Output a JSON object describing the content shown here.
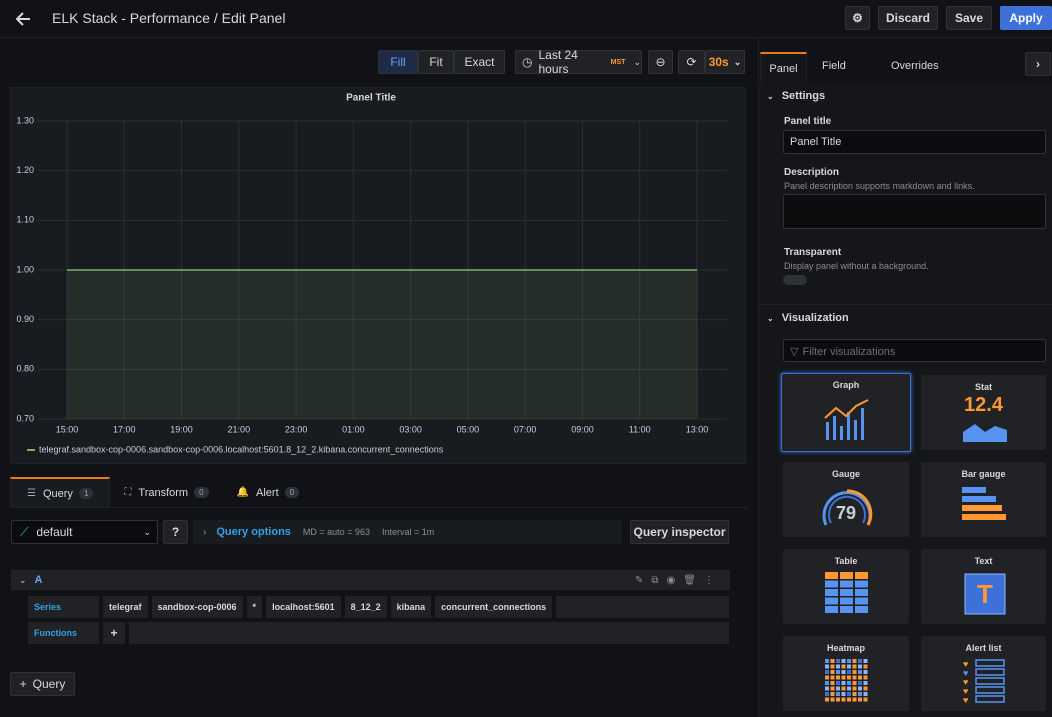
{
  "header": {
    "title": "ELK Stack - Performance / Edit Panel",
    "buttons": [
      "Discard",
      "Save",
      "Apply"
    ]
  },
  "toolbar": {
    "fit_modes": [
      "Fill",
      "Fit",
      "Exact"
    ],
    "time_range": "Last 24 hours",
    "timezone": "MST",
    "refresh": "30s"
  },
  "chart_data": {
    "type": "line",
    "title": "Panel Title",
    "categories": [
      "15:00",
      "17:00",
      "19:00",
      "21:00",
      "23:00",
      "01:00",
      "03:00",
      "05:00",
      "07:00",
      "09:00",
      "11:00",
      "13:00"
    ],
    "series": [
      {
        "name": "telegraf.sandbox-cop-0006.sandbox-cop-0006.localhost:5601.8_12_2.kibana.concurrent_connections",
        "color": "#7eb26d",
        "values": [
          1,
          1,
          1,
          1,
          1,
          1,
          1,
          1,
          1,
          1,
          1,
          1
        ]
      }
    ],
    "ylim": [
      0.7,
      1.3
    ],
    "yticks": [
      {
        "value": 0.7,
        "label": "0.70"
      },
      {
        "value": 0.8,
        "label": "0.80"
      },
      {
        "value": 0.9,
        "label": "0.90"
      },
      {
        "value": 1.0,
        "label": "1.00"
      },
      {
        "value": 1.1,
        "label": "1.10"
      },
      {
        "value": 1.2,
        "label": "1.20"
      },
      {
        "value": 1.3,
        "label": "1.30"
      }
    ],
    "grid": true,
    "area": true
  },
  "query_tabs": [
    {
      "label": "Query",
      "count": 1
    },
    {
      "label": "Transform",
      "count": 0
    },
    {
      "label": "Alert",
      "count": 0
    }
  ],
  "query_bar": {
    "datasource": "default",
    "options_label": "Query options",
    "md": "MD = auto = 963",
    "interval": "Interval = 1m",
    "inspector": "Query inspector"
  },
  "query": {
    "ref": "A",
    "series_label": "Series",
    "segments": [
      "telegraf",
      "sandbox-cop-0006",
      "*",
      "localhost:5601",
      "8_12_2",
      "kibana",
      "concurrent_connections"
    ],
    "functions_label": "Functions",
    "add_label": "Query"
  },
  "options": {
    "tabs": [
      "Panel",
      "Field",
      "Overrides"
    ],
    "settings": {
      "heading": "Settings",
      "panel_title_label": "Panel title",
      "panel_title_value": "Panel Title",
      "description_label": "Description",
      "description_hint": "Panel description supports markdown and links.",
      "transparent_label": "Transparent",
      "transparent_hint": "Display panel without a background."
    },
    "visualization": {
      "heading": "Visualization",
      "filter_placeholder": "Filter visualizations",
      "items": [
        "Graph",
        "Stat",
        "Gauge",
        "Bar gauge",
        "Table",
        "Text",
        "Heatmap",
        "Alert list"
      ],
      "stat_sample": 12.4,
      "gauge_sample": 79
    }
  }
}
